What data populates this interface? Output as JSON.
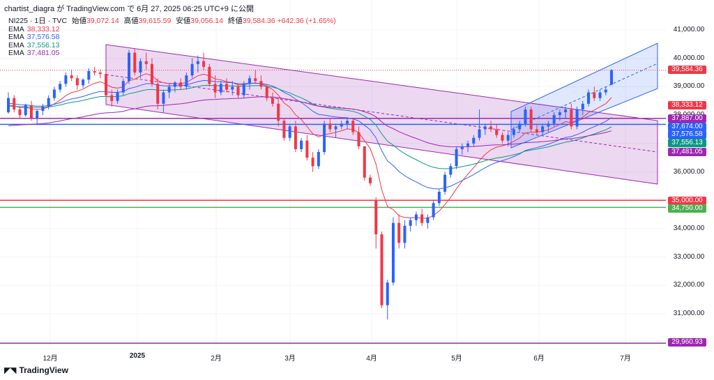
{
  "header": {
    "attribution": "chartist_diagra が TradingView.com で 6月 27, 2025 06:25 UTC+9 に公開",
    "symbol": "NI225 · 1日 · TVC",
    "open_label": "始値",
    "open": "39,072.14",
    "high_label": "高値",
    "high": "39,615.59",
    "low_label": "安値",
    "low": "39,056.14",
    "close_label": "終値",
    "close": "39,584.36",
    "change": "+642.36 (+1.65%)"
  },
  "legend": [
    {
      "label": "EMA",
      "value": "38,333.12",
      "color": "#f23645"
    },
    {
      "label": "EMA",
      "value": "37,576.58",
      "color": "#2962ff"
    },
    {
      "label": "EMA",
      "value": "37,556.13",
      "color": "#089981"
    },
    {
      "label": "EMA",
      "value": "37,481.05",
      "color": "#9c27b0"
    }
  ],
  "price_axis": [
    "41,000.00",
    "40,000.00",
    "39,000.00",
    "38,000.00",
    "37,000.00",
    "36,000.00",
    "35,000.00",
    "34,000.00",
    "33,000.00",
    "32,000.00",
    "31,000.00"
  ],
  "time_axis": [
    "12月",
    "2025",
    "2月",
    "3月",
    "4月",
    "5月",
    "6月",
    "7月"
  ],
  "price_tags": [
    {
      "text": "39,584.36",
      "color": "#f23645"
    },
    {
      "text": "38,333.12",
      "color": "#f23645"
    },
    {
      "text": "37,887.00",
      "color": "#9c27b0"
    },
    {
      "text": "37,674.00",
      "color": "#2962ff"
    },
    {
      "text": "37,576.58",
      "color": "#2962ff"
    },
    {
      "text": "37,556.13",
      "color": "#089981"
    },
    {
      "text": "37,481.05",
      "color": "#9c27b0"
    },
    {
      "text": "35,000.00",
      "color": "#f23645"
    },
    {
      "text": "34,750.00",
      "color": "#4caf50"
    },
    {
      "text": "29,960.93",
      "color": "#9c27b0"
    }
  ],
  "levels": [
    {
      "price": 37887,
      "color": "#9c27b0"
    },
    {
      "price": 37674,
      "color": "#2962ff"
    },
    {
      "price": 35000,
      "color": "#f23645"
    },
    {
      "price": 34750,
      "color": "#4caf50"
    },
    {
      "price": 29960.93,
      "color": "#9c27b0"
    }
  ],
  "chart_data": {
    "type": "candlestick",
    "colors": {
      "up": "#2962ff",
      "down": "#f23645"
    },
    "y_axis_range": [
      30000,
      41500
    ],
    "candles": [
      [
        38100,
        38800,
        38050,
        38600
      ],
      [
        38600,
        38700,
        38100,
        38200
      ],
      [
        38200,
        38300,
        37900,
        38000
      ],
      [
        38000,
        38400,
        37950,
        38350
      ],
      [
        38350,
        38500,
        37800,
        37900
      ],
      [
        37900,
        38200,
        37700,
        38150
      ],
      [
        38150,
        38400,
        38000,
        38300
      ],
      [
        38300,
        38700,
        38200,
        38600
      ],
      [
        38600,
        39000,
        38500,
        38900
      ],
      [
        38900,
        39200,
        38800,
        39100
      ],
      [
        39100,
        39500,
        39000,
        39400
      ],
      [
        39400,
        39600,
        39200,
        39300
      ],
      [
        39300,
        39400,
        38900,
        39050
      ],
      [
        39050,
        39300,
        38950,
        39250
      ],
      [
        39250,
        39650,
        39100,
        39550
      ],
      [
        39550,
        39700,
        39400,
        39500
      ],
      [
        39500,
        39600,
        39300,
        39450
      ],
      [
        39450,
        39500,
        38600,
        38700
      ],
      [
        38700,
        38900,
        38300,
        38500
      ],
      [
        38500,
        38900,
        38400,
        38800
      ],
      [
        38800,
        39300,
        38700,
        39200
      ],
      [
        39200,
        40300,
        39100,
        40200
      ],
      [
        40200,
        40350,
        39400,
        39500
      ],
      [
        39500,
        40000,
        39300,
        39900
      ],
      [
        39900,
        40200,
        39600,
        39800
      ],
      [
        39800,
        40000,
        39000,
        39100
      ],
      [
        39100,
        39300,
        38200,
        38400
      ],
      [
        38400,
        38900,
        38100,
        38800
      ],
      [
        38800,
        39100,
        38600,
        39000
      ],
      [
        39000,
        39200,
        38800,
        39150
      ],
      [
        39150,
        39300,
        38900,
        39000
      ],
      [
        39000,
        39500,
        38900,
        39400
      ],
      [
        39400,
        40000,
        39300,
        39800
      ],
      [
        39800,
        40100,
        39500,
        39900
      ],
      [
        39900,
        40200,
        39600,
        39700
      ],
      [
        39700,
        39800,
        39000,
        39100
      ],
      [
        39100,
        39400,
        38600,
        38800
      ],
      [
        38800,
        39200,
        38700,
        39100
      ],
      [
        39100,
        39300,
        38800,
        38900
      ],
      [
        38900,
        39200,
        38700,
        39000
      ],
      [
        39000,
        39100,
        38600,
        38700
      ],
      [
        38700,
        39200,
        38600,
        39100
      ],
      [
        39100,
        39400,
        38900,
        39300
      ],
      [
        39300,
        39600,
        39100,
        39200
      ],
      [
        39200,
        39400,
        38900,
        39000
      ],
      [
        39000,
        39100,
        38500,
        38600
      ],
      [
        38600,
        38800,
        38300,
        38400
      ],
      [
        38400,
        38600,
        37600,
        37800
      ],
      [
        37800,
        37900,
        37100,
        37200
      ],
      [
        37200,
        37700,
        37100,
        37600
      ],
      [
        37600,
        37800,
        36700,
        36800
      ],
      [
        36800,
        37200,
        36700,
        37100
      ],
      [
        37100,
        37300,
        36400,
        36500
      ],
      [
        36500,
        36700,
        36000,
        36200
      ],
      [
        36200,
        36800,
        36100,
        36700
      ],
      [
        36700,
        37800,
        36600,
        37700
      ],
      [
        37700,
        37900,
        37400,
        37500
      ],
      [
        37500,
        37700,
        37200,
        37600
      ],
      [
        37600,
        37800,
        37500,
        37700
      ],
      [
        37700,
        37900,
        37500,
        37800
      ],
      [
        37800,
        37900,
        37300,
        37400
      ],
      [
        37400,
        37600,
        36800,
        36900
      ],
      [
        36900,
        36900,
        35700,
        35800
      ],
      [
        35800,
        35900,
        35500,
        35600
      ],
      [
        35000,
        35100,
        33300,
        33800
      ],
      [
        33800,
        33900,
        31200,
        31300
      ],
      [
        31300,
        32200,
        30800,
        32100
      ],
      [
        32100,
        34400,
        32000,
        34200
      ],
      [
        34200,
        34500,
        33300,
        33500
      ],
      [
        33500,
        34300,
        33300,
        34100
      ],
      [
        34100,
        34400,
        33900,
        34300
      ],
      [
        34300,
        34600,
        34100,
        34500
      ],
      [
        34500,
        34700,
        34100,
        34200
      ],
      [
        34200,
        34500,
        34000,
        34400
      ],
      [
        34400,
        35000,
        34300,
        34900
      ],
      [
        34900,
        35400,
        34800,
        35300
      ],
      [
        35300,
        36000,
        35200,
        35900
      ],
      [
        35900,
        36300,
        35800,
        36200
      ],
      [
        36200,
        36900,
        36100,
        36800
      ],
      [
        36800,
        37000,
        36600,
        36900
      ],
      [
        36900,
        37100,
        36700,
        37000
      ],
      [
        37000,
        37300,
        36900,
        37200
      ],
      [
        37200,
        38200,
        37100,
        37500
      ],
      [
        37500,
        37700,
        37300,
        37600
      ],
      [
        37600,
        37800,
        37400,
        37500
      ],
      [
        37500,
        37700,
        37200,
        37300
      ],
      [
        37300,
        37400,
        37000,
        37100
      ],
      [
        37100,
        37400,
        36900,
        37300
      ],
      [
        37300,
        37600,
        37200,
        37500
      ],
      [
        37500,
        37800,
        37400,
        37700
      ],
      [
        37700,
        38300,
        37600,
        38200
      ],
      [
        38200,
        38300,
        37400,
        37500
      ],
      [
        37500,
        37700,
        37300,
        37400
      ],
      [
        37400,
        37700,
        37300,
        37600
      ],
      [
        37600,
        37800,
        37400,
        37700
      ],
      [
        37700,
        38100,
        37600,
        38000
      ],
      [
        38000,
        38200,
        37800,
        38100
      ],
      [
        38100,
        38300,
        37900,
        38200
      ],
      [
        38200,
        38400,
        37500,
        37600
      ],
      [
        37600,
        38300,
        37500,
        38200
      ],
      [
        38200,
        38500,
        38000,
        38400
      ],
      [
        38400,
        38900,
        38300,
        38800
      ],
      [
        38800,
        39000,
        38500,
        38600
      ],
      [
        38600,
        38900,
        38500,
        38800
      ],
      [
        38800,
        39000,
        38700,
        38900
      ],
      [
        39072.14,
        39615.59,
        39056.14,
        39584.36
      ]
    ],
    "ema_labels": [
      "EMA 38,333.12",
      "EMA 37,576.58",
      "EMA 37,556.13",
      "EMA 37,481.05"
    ],
    "channels": [
      {
        "name": "",
        "color": "#9c27b0"
      },
      {
        "name": "",
        "color": "#2962ff"
      }
    ]
  }
}
